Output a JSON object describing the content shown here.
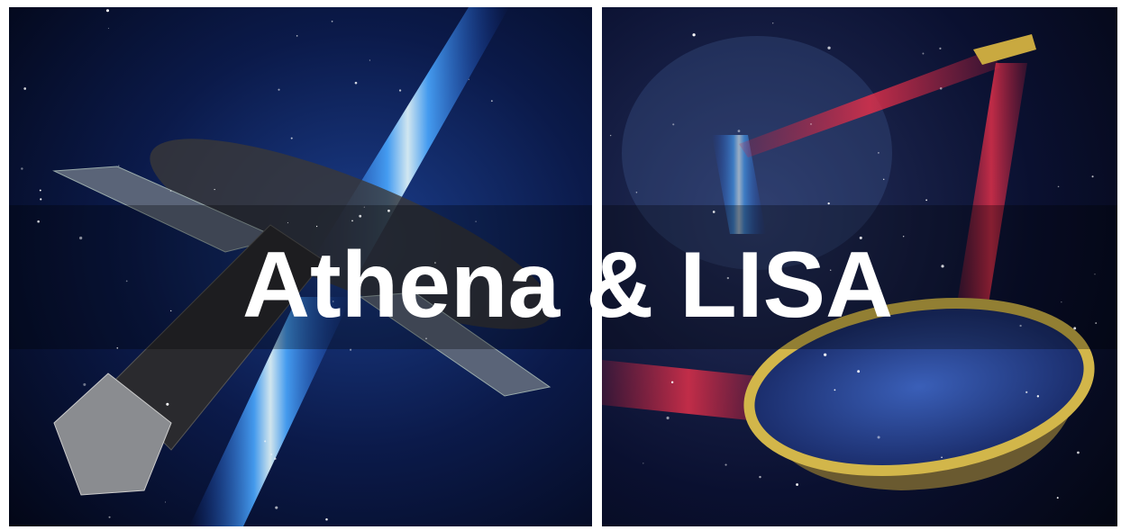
{
  "title": "Athena & LISA"
}
